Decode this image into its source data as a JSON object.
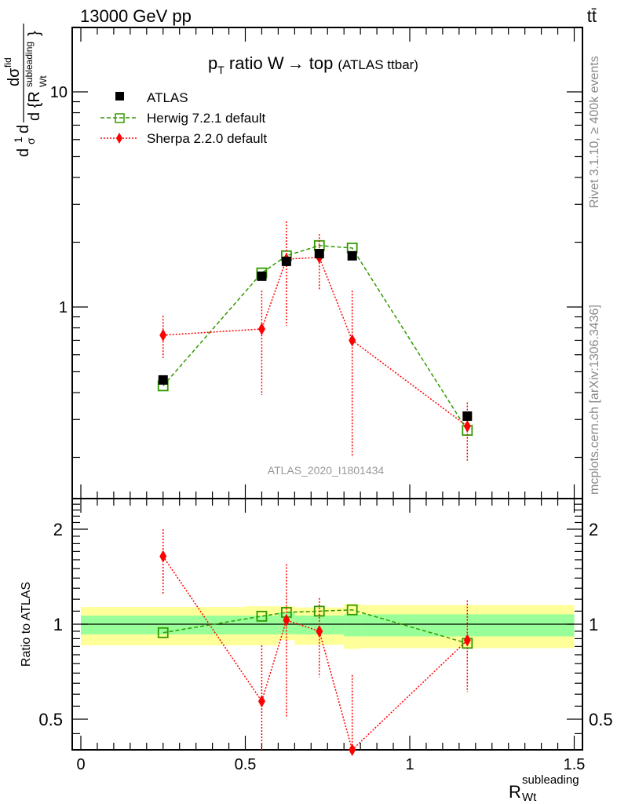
{
  "header": {
    "energy": "13000 GeV pp",
    "process": "tt̄"
  },
  "side_text": {
    "rivet": "Rivet 3.1.10, ≥ 400k events",
    "mcplots": "mcplots.cern.ch [arXiv:1306.3436]"
  },
  "watermark": "ATLAS_2020_I1801434",
  "colors": {
    "atlas": "#000000",
    "herwig": "#339900",
    "sherpa": "#ff0000",
    "band_inner": "#99ff99",
    "band_outer": "#ffff99"
  },
  "chart_data": [
    {
      "type": "scatter",
      "title": {
        "p": "p",
        "sub": "T",
        "main": " ratio W",
        "arrow": "→ top",
        "paren": "(ATLAS ttbar)"
      },
      "ylabel": {
        "num": "dσ",
        "num_sup": "fid",
        "pre": "d",
        "frac": "1",
        "frac_den": "σ",
        "den": "d {R",
        "den_sub": "Wt",
        "den_sup": "subleading",
        "close": "}"
      },
      "yscale": "log",
      "ylim": [
        0.129,
        20
      ],
      "xlim": [
        -0.025,
        1.525
      ],
      "yticks": [
        {
          "v": 10,
          "label": "10"
        },
        {
          "v": 1,
          "label": "1"
        }
      ],
      "legend_position": "top-left",
      "legend": [
        "ATLAS",
        "Herwig 7.2.1 default",
        "Sherpa 2.2.0 default"
      ],
      "x": [
        0.25,
        0.55,
        0.625,
        0.725,
        0.825,
        1.175
      ],
      "bin_edges": [
        0,
        0.5,
        0.6,
        0.65,
        0.8,
        0.85,
        1.5
      ],
      "series": [
        {
          "name": "ATLAS",
          "values": [
            0.458,
            1.39,
            1.63,
            1.77,
            1.73,
            0.311
          ]
        },
        {
          "name": "Herwig 7.2.1 default",
          "values": [
            0.43,
            1.44,
            1.73,
            1.93,
            1.88,
            0.267
          ]
        },
        {
          "name": "Sherpa 2.2.0 default",
          "values": [
            0.74,
            0.79,
            1.67,
            1.7,
            0.7,
            0.279
          ],
          "err_low": [
            0.58,
            0.39,
            0.82,
            1.21,
            0.2,
            0.19
          ],
          "err_high": [
            0.91,
            1.19,
            2.5,
            2.18,
            1.19,
            0.36
          ]
        }
      ]
    },
    {
      "type": "scatter",
      "ylabel": "Ratio to ATLAS",
      "xlabel": {
        "main": "R",
        "sub": "Wt",
        "sup": "subleading"
      },
      "yscale": "log",
      "ylim": [
        0.4,
        2.5
      ],
      "yticks": [
        {
          "v": 2,
          "label": "2"
        },
        {
          "v": 1,
          "label": "1"
        },
        {
          "v": 0.5,
          "label": "0.5"
        }
      ],
      "xticks": [
        {
          "v": 0,
          "label": "0"
        },
        {
          "v": 0.5,
          "label": "0.5"
        },
        {
          "v": 1,
          "label": "1"
        },
        {
          "v": 1.5,
          "label": "1.5"
        }
      ],
      "band_outer": [
        [
          0.857,
          1.134
        ],
        [
          0.857,
          1.14
        ],
        [
          0.89,
          1.14
        ],
        [
          0.86,
          1.13
        ],
        [
          0.835,
          1.16
        ],
        [
          0.84,
          1.15
        ]
      ],
      "band_inner": [
        [
          0.928,
          1.065
        ],
        [
          0.928,
          1.065
        ],
        [
          0.93,
          1.09
        ],
        [
          0.928,
          1.065
        ],
        [
          0.915,
          1.075
        ],
        [
          0.915,
          1.075
        ]
      ],
      "series": [
        {
          "name": "Herwig 7.2.1 default",
          "values": [
            0.94,
            1.06,
            1.09,
            1.1,
            1.11,
            0.87
          ]
        },
        {
          "name": "Sherpa 2.2.0 default",
          "values": [
            1.64,
            0.57,
            1.03,
            0.95,
            0.4,
            0.89
          ],
          "err_low": [
            1.24,
            0.4,
            0.51,
            0.68,
            0.4,
            0.61
          ],
          "err_high": [
            2.0,
            0.857,
            1.55,
            1.21,
            0.69,
            1.19
          ]
        }
      ]
    }
  ]
}
